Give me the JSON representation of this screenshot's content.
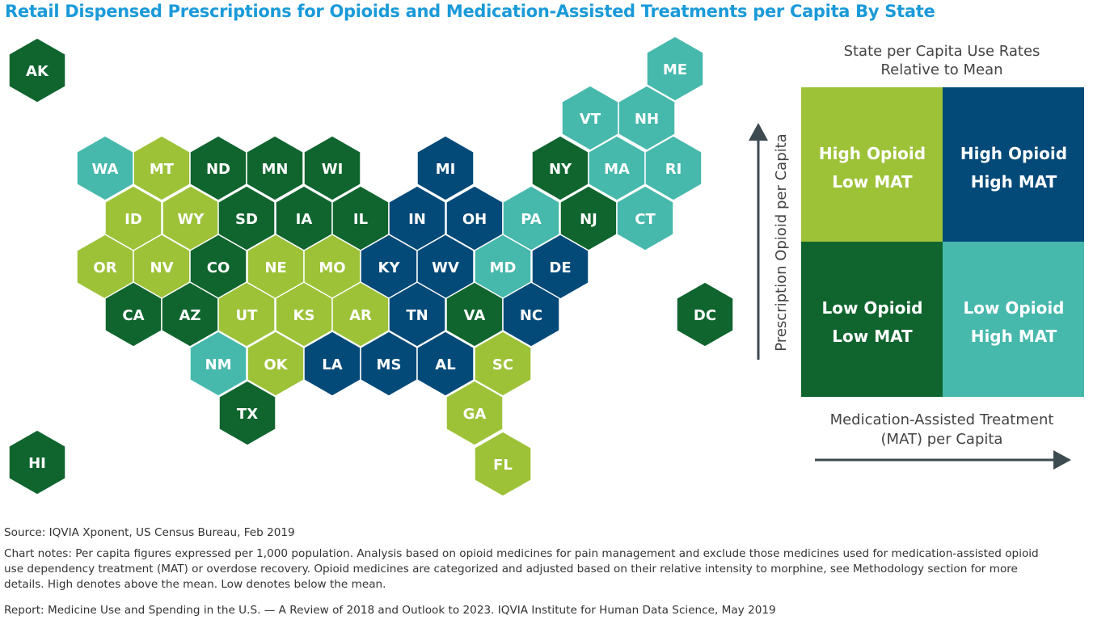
{
  "title": "Retail Dispensed Prescriptions for Opioids and Medication-Assisted Treatments per Capita By State",
  "chart_data": {
    "type": "hex-tile-map",
    "title": "Retail Dispensed Prescriptions for Opioids and Medication-Assisted Treatments per Capita By State",
    "categories": {
      "HL": {
        "label1": "High Opioid",
        "label2": "Low MAT",
        "color": "#9dc238"
      },
      "HH": {
        "label1": "High Opioid",
        "label2": "High MAT",
        "color": "#044a79"
      },
      "LL": {
        "label1": "Low Opioid",
        "label2": "Low MAT",
        "color": "#10652f"
      },
      "LH": {
        "label1": "Low Opioid",
        "label2": "High MAT",
        "color": "#46b8ac"
      }
    },
    "states": [
      {
        "code": "AK",
        "cat": "LL"
      },
      {
        "code": "ME",
        "cat": "LH"
      },
      {
        "code": "VT",
        "cat": "LH"
      },
      {
        "code": "NH",
        "cat": "LH"
      },
      {
        "code": "WA",
        "cat": "LH"
      },
      {
        "code": "MT",
        "cat": "HL"
      },
      {
        "code": "ND",
        "cat": "LL"
      },
      {
        "code": "MN",
        "cat": "LL"
      },
      {
        "code": "WI",
        "cat": "LL"
      },
      {
        "code": "MI",
        "cat": "HH"
      },
      {
        "code": "NY",
        "cat": "LL"
      },
      {
        "code": "MA",
        "cat": "LH"
      },
      {
        "code": "RI",
        "cat": "LH"
      },
      {
        "code": "ID",
        "cat": "HL"
      },
      {
        "code": "WY",
        "cat": "HL"
      },
      {
        "code": "SD",
        "cat": "LL"
      },
      {
        "code": "IA",
        "cat": "LL"
      },
      {
        "code": "IL",
        "cat": "LL"
      },
      {
        "code": "IN",
        "cat": "HH"
      },
      {
        "code": "OH",
        "cat": "HH"
      },
      {
        "code": "PA",
        "cat": "LH"
      },
      {
        "code": "NJ",
        "cat": "LL"
      },
      {
        "code": "CT",
        "cat": "LH"
      },
      {
        "code": "OR",
        "cat": "HL"
      },
      {
        "code": "NV",
        "cat": "HL"
      },
      {
        "code": "CO",
        "cat": "LL"
      },
      {
        "code": "NE",
        "cat": "HL"
      },
      {
        "code": "MO",
        "cat": "HL"
      },
      {
        "code": "KY",
        "cat": "HH"
      },
      {
        "code": "WV",
        "cat": "HH"
      },
      {
        "code": "MD",
        "cat": "LH"
      },
      {
        "code": "DE",
        "cat": "HH"
      },
      {
        "code": "CA",
        "cat": "LL"
      },
      {
        "code": "AZ",
        "cat": "LL"
      },
      {
        "code": "UT",
        "cat": "HL"
      },
      {
        "code": "KS",
        "cat": "HL"
      },
      {
        "code": "AR",
        "cat": "HL"
      },
      {
        "code": "TN",
        "cat": "HH"
      },
      {
        "code": "VA",
        "cat": "LL"
      },
      {
        "code": "NC",
        "cat": "HH"
      },
      {
        "code": "DC",
        "cat": "LL"
      },
      {
        "code": "NM",
        "cat": "LH"
      },
      {
        "code": "OK",
        "cat": "HL"
      },
      {
        "code": "LA",
        "cat": "HH"
      },
      {
        "code": "MS",
        "cat": "HH"
      },
      {
        "code": "AL",
        "cat": "HH"
      },
      {
        "code": "SC",
        "cat": "HL"
      },
      {
        "code": "TX",
        "cat": "LL"
      },
      {
        "code": "GA",
        "cat": "HL"
      },
      {
        "code": "HI",
        "cat": "LL"
      },
      {
        "code": "FL",
        "cat": "HL"
      }
    ],
    "legend": {
      "title1": "State per Capita Use Rates",
      "title2": "Relative to Mean",
      "ylabel": "Prescription Opioid per Capita",
      "xlabel1": "Medication-Assisted Treatment",
      "xlabel2": "(MAT)  per Capita",
      "placement": "right"
    }
  },
  "notes": {
    "source": "Source: IQVIA Xponent, US Census Bureau, Feb 2019",
    "chart_notes": "Chart notes: Per capita figures expressed per 1,000 population. Analysis based on opioid medicines for pain management and exclude those medicines used for medication-assisted opioid use dependency treatment (MAT) or overdose recovery. Opioid medicines are categorized and adjusted based on their relative intensity to morphine, see Methodology section for more details. High denotes above the mean. Low denotes below the mean.",
    "report": "Report: Medicine Use and Spending in the U.S. — A Review of 2018 and Outlook to 2023. IQVIA Institute for Human Data Science, May 2019"
  }
}
